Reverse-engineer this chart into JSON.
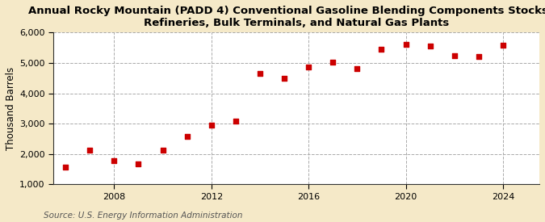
{
  "title": "Annual Rocky Mountain (PADD 4) Conventional Gasoline Blending Components Stocks at\nRefineries, Bulk Terminals, and Natural Gas Plants",
  "ylabel": "Thousand Barrels",
  "source": "Source: U.S. Energy Information Administration",
  "background_color": "#f5e9c8",
  "plot_background_color": "#ffffff",
  "marker_color": "#cc0000",
  "years": [
    2006,
    2007,
    2008,
    2009,
    2010,
    2011,
    2012,
    2013,
    2014,
    2015,
    2016,
    2017,
    2018,
    2019,
    2020,
    2021,
    2022,
    2023,
    2024
  ],
  "values": [
    1580,
    2130,
    1790,
    1670,
    2120,
    2580,
    2940,
    3080,
    4650,
    4490,
    4870,
    5020,
    4810,
    5450,
    5600,
    5560,
    5230,
    5220,
    5570
  ],
  "ylim": [
    1000,
    6000
  ],
  "yticks": [
    1000,
    2000,
    3000,
    4000,
    5000,
    6000
  ],
  "xticks": [
    2008,
    2012,
    2016,
    2020,
    2024
  ],
  "xlim": [
    2005.5,
    2025.5
  ],
  "title_fontsize": 9.5,
  "label_fontsize": 8.5,
  "tick_fontsize": 8,
  "source_fontsize": 7.5
}
